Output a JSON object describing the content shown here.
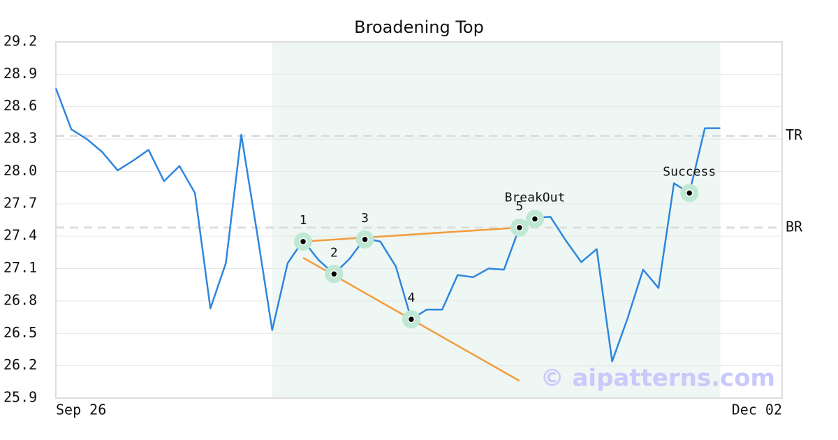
{
  "chart_data": {
    "type": "line",
    "title": "Broadening Top",
    "x": [
      0,
      1,
      2,
      3,
      4,
      5,
      6,
      7,
      8,
      9,
      10,
      11,
      12,
      13,
      14,
      15,
      16,
      17,
      18,
      19,
      20,
      21,
      22,
      23,
      24,
      25,
      26,
      27,
      28,
      29,
      30,
      31,
      32,
      33,
      34,
      35,
      36,
      37,
      38,
      39,
      40,
      41,
      42,
      43
    ],
    "series": [
      {
        "color": "#2e86de",
        "values": [
          28.77,
          28.39,
          28.3,
          28.18,
          28.01,
          28.1,
          28.2,
          27.91,
          28.05,
          27.8,
          26.73,
          27.15,
          28.34,
          27.45,
          26.53,
          27.15,
          27.36,
          27.18,
          27.05,
          27.19,
          27.38,
          27.35,
          27.12,
          26.63,
          26.72,
          26.72,
          27.04,
          27.02,
          27.1,
          27.09,
          27.48,
          27.57,
          27.58,
          27.36,
          27.16,
          27.28,
          26.24,
          26.64,
          27.09,
          26.92,
          27.89,
          27.8,
          28.4,
          28.4
        ]
      }
    ],
    "xlim": [
      0,
      47
    ],
    "xticks": [
      {
        "value": 0,
        "label": "Sep 26"
      },
      {
        "value": 47,
        "label": "Dec 02"
      }
    ],
    "ylim": [
      25.9,
      29.2
    ],
    "yticks": [
      25.9,
      26.2,
      26.5,
      26.8,
      27.1,
      27.4,
      27.7,
      {
        "value": 28,
        "label": "28.0"
      },
      28.3,
      28.6,
      28.9,
      29.2
    ],
    "grid": true,
    "highlight_range": [
      14,
      43
    ],
    "highlight_color": "#eef7f3",
    "levels": [
      {
        "label": "TR",
        "value": 28.33
      },
      {
        "label": "BR",
        "value": 27.48
      }
    ],
    "trend_color": "#f39c3c",
    "trend_lines": [
      {
        "x": [
          16,
          30
        ],
        "y": [
          27.35,
          27.48
        ]
      },
      {
        "x": [
          16,
          30
        ],
        "y": [
          27.2,
          26.06
        ]
      }
    ],
    "points": [
      {
        "label": "1",
        "x": 16,
        "y": 27.35
      },
      {
        "label": "2",
        "x": 18,
        "y": 27.05
      },
      {
        "label": "3",
        "x": 20,
        "y": 27.37
      },
      {
        "label": "4",
        "x": 23,
        "y": 26.63
      },
      {
        "label": "5",
        "x": 30,
        "y": 27.48
      },
      {
        "label": "BreakOut",
        "x": 31,
        "y": 27.56
      },
      {
        "label": "Success",
        "x": 41,
        "y": 27.8
      }
    ],
    "watermark": "© aipatterns.com"
  }
}
